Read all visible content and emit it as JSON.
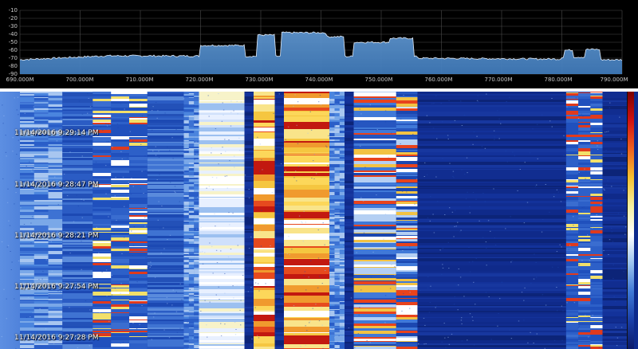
{
  "spectrum": {
    "y_ticks": [
      "-10",
      "-20",
      "-30",
      "-40",
      "-50",
      "-60",
      "-70",
      "-80",
      "-90"
    ],
    "x_ticks": [
      "690.000M",
      "700.000M",
      "710.000M",
      "720.000M",
      "730.000M",
      "740.000M",
      "750.000M",
      "760.000M",
      "770.000M",
      "780.000M",
      "790.000M"
    ],
    "x_range": [
      690,
      790
    ],
    "y_range": [
      -90,
      -10
    ],
    "grid": true,
    "trace_color": "#dfeaf7",
    "fill_color": "#3f79b8"
  },
  "waterfall": {
    "timestamps": [
      "11/14/2016 9:29:14 PM",
      "11/14/2016 9:28:47 PM",
      "11/14/2016 9:28:21 PM",
      "11/14/2016 9:27:54 PM",
      "11/14/2016 9:27:28 PM"
    ],
    "colorbar_colors": [
      "#7a0000",
      "#d01010",
      "#f06020",
      "#f5c030",
      "#f6f0a0",
      "#ffffff",
      "#9cc4ef",
      "#3e78d6",
      "#1a3fa8",
      "#0a1a6a"
    ],
    "bands": [
      {
        "start": 690,
        "end": 697,
        "level": 0.45,
        "tone": "light"
      },
      {
        "start": 697,
        "end": 702,
        "level": 0.3,
        "tone": "mid"
      },
      {
        "start": 702,
        "end": 711,
        "level": 0.35,
        "tone": "hot-lines"
      },
      {
        "start": 711,
        "end": 717,
        "level": 0.3,
        "tone": "mid"
      },
      {
        "start": 717,
        "end": 719.5,
        "level": 0.55,
        "tone": "light"
      },
      {
        "start": 719.5,
        "end": 727,
        "level": 0.55,
        "tone": "light-yellow"
      },
      {
        "start": 727,
        "end": 728.5,
        "level": 0.2,
        "tone": "dark"
      },
      {
        "start": 728.5,
        "end": 732,
        "level": 0.9,
        "tone": "hot"
      },
      {
        "start": 732,
        "end": 733.5,
        "level": 0.2,
        "tone": "dark"
      },
      {
        "start": 733.5,
        "end": 741,
        "level": 0.95,
        "tone": "hot"
      },
      {
        "start": 741,
        "end": 743.5,
        "level": 0.6,
        "tone": "light"
      },
      {
        "start": 743.5,
        "end": 745,
        "level": 0.2,
        "tone": "dark"
      },
      {
        "start": 745,
        "end": 752,
        "level": 0.6,
        "tone": "mixed"
      },
      {
        "start": 752,
        "end": 755.5,
        "level": 0.6,
        "tone": "mixed"
      },
      {
        "start": 755.5,
        "end": 780,
        "level": 0.15,
        "tone": "dark"
      },
      {
        "start": 780,
        "end": 786,
        "level": 0.5,
        "tone": "hot-lines"
      },
      {
        "start": 786,
        "end": 790,
        "level": 0.15,
        "tone": "dark"
      }
    ]
  }
}
